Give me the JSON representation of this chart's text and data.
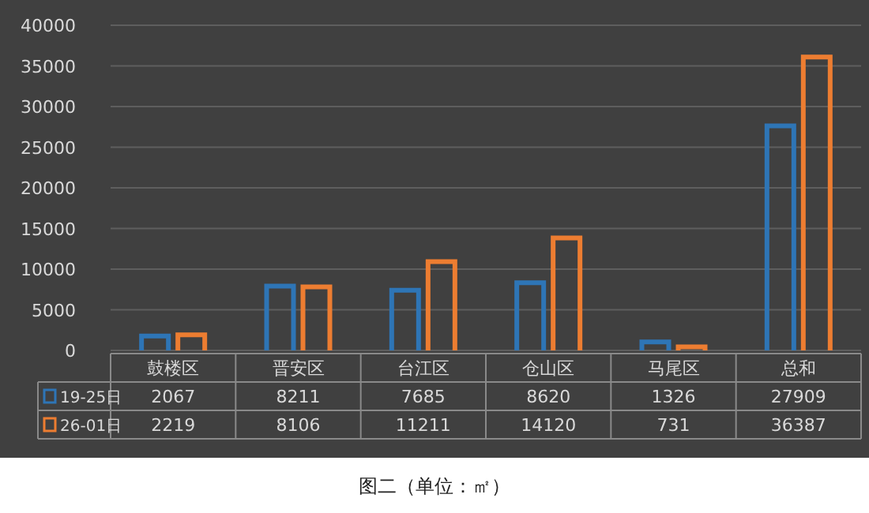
{
  "chart_data": {
    "type": "bar",
    "categories": [
      "鼓楼区",
      "晋安区",
      "台江区",
      "仓山区",
      "马尾区",
      "总和"
    ],
    "series": [
      {
        "name": "19-25日",
        "color": "#2e75b6",
        "values": [
          2067,
          8211,
          7685,
          8620,
          1326,
          27909
        ]
      },
      {
        "name": "26-01日",
        "color": "#ed7d31",
        "values": [
          2219,
          8106,
          11211,
          14120,
          731,
          36387
        ]
      }
    ],
    "ylim": [
      0,
      40000
    ],
    "yticks": [
      0,
      5000,
      10000,
      15000,
      20000,
      25000,
      30000,
      35000,
      40000
    ],
    "grid": "y",
    "legend": "bottom",
    "data_labels": true,
    "annotations": [
      "图二（单位：㎡）"
    ]
  }
}
